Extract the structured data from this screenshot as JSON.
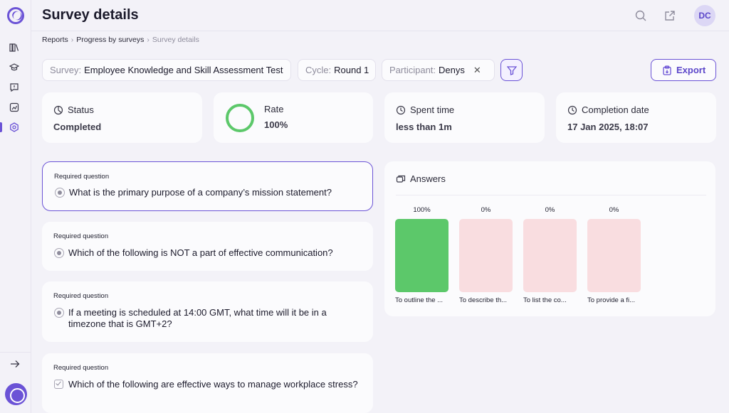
{
  "header": {
    "title": "Survey details",
    "avatar_initials": "DC"
  },
  "breadcrumb": {
    "items": [
      "Reports",
      "Progress by surveys"
    ],
    "current": "Survey details"
  },
  "filters": {
    "survey": {
      "label": "Survey:",
      "value": "Employee Knowledge and Skill Assessment Test"
    },
    "cycle": {
      "label": "Cycle:",
      "value": "Round 1"
    },
    "participant": {
      "label": "Participant:",
      "value": "Denys"
    }
  },
  "export_label": "Export",
  "stats": {
    "status": {
      "title": "Status",
      "value": "Completed"
    },
    "rate": {
      "title": "Rate",
      "value": "100%",
      "fraction": 1.0
    },
    "spent": {
      "title": "Spent time",
      "value": "less than 1m"
    },
    "completion": {
      "title": "Completion date",
      "value": "17 Jan 2025, 18:07"
    }
  },
  "questions": [
    {
      "req": "Required question",
      "text": "What is the primary purpose of a company’s mission statement?",
      "type": "single"
    },
    {
      "req": "Required question",
      "text": "Which of the following is NOT a part of effective communication?",
      "type": "single"
    },
    {
      "req": "Required question",
      "text": "If a meeting is scheduled at 14:00 GMT, what time will it be in a timezone that is GMT+2?",
      "type": "single"
    },
    {
      "req": "Required question",
      "text": "Which of the following are effective ways to manage workplace stress?",
      "type": "multiple"
    }
  ],
  "answers": {
    "title": "Answers",
    "chart_data": {
      "type": "bar",
      "categories": [
        "To outline the ...",
        "To describe th...",
        "To list the co...",
        "To provide a fi..."
      ],
      "values": [
        100,
        0,
        0,
        0
      ],
      "labels": [
        "100%",
        "0%",
        "0%",
        "0%"
      ],
      "ylim": [
        0,
        100
      ],
      "colors": {
        "positive": "#5cc86a",
        "zero": "#f9dde0"
      }
    }
  },
  "colors": {
    "accent": "#6b53d6",
    "success": "#5cc86a"
  }
}
